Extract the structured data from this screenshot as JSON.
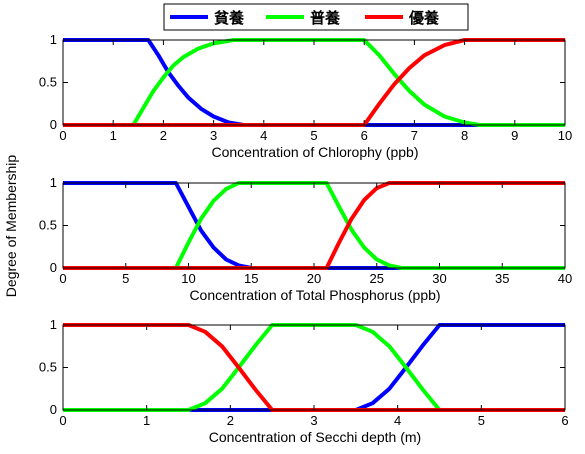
{
  "ylabel": "Degree of Membership",
  "legend": {
    "placement": "top-center",
    "items": [
      {
        "label": "貧養",
        "color": "#0000ff"
      },
      {
        "label": "普養",
        "color": "#00ff00"
      },
      {
        "label": "優養",
        "color": "#ff0000"
      }
    ]
  },
  "chart_data": [
    {
      "type": "line",
      "xlabel": "Concentration of Chlorophy (ppb)",
      "xlim": [
        0,
        10
      ],
      "ylim": [
        0,
        1
      ],
      "xticks": [
        0,
        1,
        2,
        3,
        4,
        5,
        6,
        7,
        8,
        9,
        10
      ],
      "yticks": [
        0,
        0.5,
        1
      ],
      "series": [
        {
          "name": "貧養",
          "color": "#0000ff",
          "x": [
            0,
            1.7,
            1.9,
            2.1,
            2.3,
            2.5,
            2.75,
            3.0,
            3.3,
            3.6,
            3.8,
            10
          ],
          "y": [
            1,
            1,
            0.82,
            0.62,
            0.46,
            0.32,
            0.19,
            0.1,
            0.03,
            0.0,
            0,
            0
          ]
        },
        {
          "name": "普養",
          "color": "#00ff00",
          "x": [
            0,
            1.4,
            1.6,
            1.8,
            2.0,
            2.2,
            2.4,
            2.7,
            3.0,
            3.4,
            6.0,
            6.3,
            6.6,
            6.9,
            7.2,
            7.6,
            8.0,
            8.3,
            10
          ],
          "y": [
            0,
            0,
            0.2,
            0.4,
            0.56,
            0.7,
            0.8,
            0.9,
            0.96,
            1,
            1,
            0.82,
            0.6,
            0.4,
            0.24,
            0.1,
            0.03,
            0,
            0
          ]
        },
        {
          "name": "優養",
          "color": "#ff0000",
          "x": [
            0,
            6.0,
            6.3,
            6.6,
            6.9,
            7.2,
            7.6,
            8.0,
            10
          ],
          "y": [
            0,
            0,
            0.25,
            0.48,
            0.67,
            0.82,
            0.94,
            1,
            1
          ]
        }
      ]
    },
    {
      "type": "line",
      "xlabel": "Concentration of Total Phosphorus (ppb)",
      "xlim": [
        0,
        40
      ],
      "ylim": [
        0,
        1
      ],
      "xticks": [
        0,
        5,
        10,
        15,
        20,
        25,
        30,
        35,
        40
      ],
      "yticks": [
        0,
        0.5,
        1
      ],
      "series": [
        {
          "name": "貧養",
          "color": "#0000ff",
          "x": [
            0,
            9.0,
            10.0,
            11.0,
            12.0,
            13.0,
            14.0,
            15.0,
            40
          ],
          "y": [
            1,
            1,
            0.72,
            0.44,
            0.24,
            0.1,
            0.03,
            0,
            0
          ]
        },
        {
          "name": "普養",
          "color": "#00ff00",
          "x": [
            0,
            9.0,
            10.0,
            11.0,
            12.0,
            13.0,
            14.0,
            21.0,
            22.0,
            23.0,
            24.0,
            25.0,
            26.0,
            27.0,
            40
          ],
          "y": [
            0,
            0,
            0.3,
            0.58,
            0.79,
            0.93,
            1,
            1,
            0.72,
            0.45,
            0.24,
            0.1,
            0.03,
            0,
            0
          ]
        },
        {
          "name": "優養",
          "color": "#ff0000",
          "x": [
            0,
            21.0,
            22.0,
            23.0,
            24.0,
            25.0,
            26.0,
            40
          ],
          "y": [
            0,
            0,
            0.3,
            0.58,
            0.8,
            0.94,
            1,
            1
          ]
        }
      ]
    },
    {
      "type": "line",
      "xlabel": "Concentration of Secchi depth (m)",
      "xlim": [
        0,
        6
      ],
      "ylim": [
        0,
        1
      ],
      "xticks": [
        0,
        1,
        2,
        3,
        4,
        5,
        6
      ],
      "yticks": [
        0,
        0.5,
        1
      ],
      "series": [
        {
          "name": "貧養",
          "color": "#0000ff",
          "x": [
            0,
            3.5,
            3.7,
            3.9,
            4.1,
            4.3,
            4.5,
            6
          ],
          "y": [
            0,
            0,
            0.08,
            0.25,
            0.5,
            0.76,
            1,
            1
          ]
        },
        {
          "name": "普養",
          "color": "#00ff00",
          "x": [
            0,
            1.5,
            1.7,
            1.9,
            2.1,
            2.3,
            2.5,
            3.5,
            3.7,
            3.9,
            4.1,
            4.3,
            4.5,
            6
          ],
          "y": [
            0,
            0,
            0.08,
            0.25,
            0.5,
            0.76,
            1,
            1,
            0.92,
            0.75,
            0.5,
            0.24,
            0,
            0
          ]
        },
        {
          "name": "優養",
          "color": "#ff0000",
          "x": [
            0,
            1.5,
            1.7,
            1.9,
            2.1,
            2.3,
            2.5,
            6
          ],
          "y": [
            1,
            1,
            0.92,
            0.75,
            0.5,
            0.24,
            0,
            0
          ]
        }
      ]
    }
  ]
}
